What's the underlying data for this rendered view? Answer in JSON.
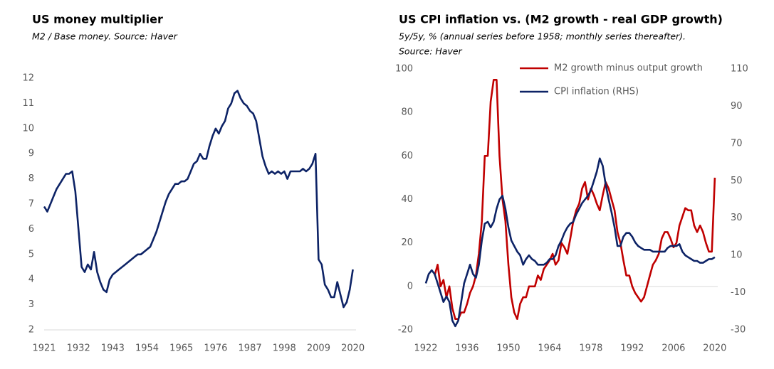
{
  "chart_data": [
    {
      "type": "line",
      "title": "US money multiplier",
      "subtitle": [
        "M2 / Base money. Source: Haver"
      ],
      "x": [
        1921,
        1922,
        1923,
        1924,
        1925,
        1926,
        1927,
        1928,
        1929,
        1930,
        1931,
        1932,
        1933,
        1934,
        1935,
        1936,
        1937,
        1938,
        1939,
        1940,
        1941,
        1942,
        1943,
        1944,
        1945,
        1946,
        1947,
        1948,
        1949,
        1950,
        1951,
        1952,
        1953,
        1954,
        1955,
        1956,
        1957,
        1958,
        1959,
        1960,
        1961,
        1962,
        1963,
        1964,
        1965,
        1966,
        1967,
        1968,
        1969,
        1970,
        1971,
        1972,
        1973,
        1974,
        1975,
        1976,
        1977,
        1978,
        1979,
        1980,
        1981,
        1982,
        1983,
        1984,
        1985,
        1986,
        1987,
        1988,
        1989,
        1990,
        1991,
        1992,
        1993,
        1994,
        1995,
        1996,
        1997,
        1998,
        1999,
        2000,
        2001,
        2002,
        2003,
        2004,
        2005,
        2006,
        2007,
        2008,
        2009,
        2010,
        2011,
        2012,
        2013,
        2014,
        2015,
        2016,
        2017,
        2018,
        2019,
        2020
      ],
      "series": [
        {
          "color": "#0d2366",
          "values": [
            6.9,
            6.7,
            7.0,
            7.3,
            7.6,
            7.8,
            8.0,
            8.2,
            8.2,
            8.3,
            7.5,
            6.0,
            4.5,
            4.3,
            4.6,
            4.4,
            5.1,
            4.3,
            3.9,
            3.6,
            3.5,
            4.0,
            4.2,
            4.3,
            4.4,
            4.5,
            4.6,
            4.7,
            4.8,
            4.9,
            5.0,
            5.0,
            5.1,
            5.2,
            5.3,
            5.6,
            5.9,
            6.3,
            6.7,
            7.1,
            7.4,
            7.6,
            7.8,
            7.8,
            7.9,
            7.9,
            8.0,
            8.3,
            8.6,
            8.7,
            9.0,
            8.8,
            8.8,
            9.3,
            9.7,
            10.0,
            9.8,
            10.1,
            10.3,
            10.8,
            11.0,
            11.4,
            11.5,
            11.2,
            11.0,
            10.9,
            10.7,
            10.6,
            10.3,
            9.6,
            8.9,
            8.5,
            8.2,
            8.3,
            8.2,
            8.3,
            8.2,
            8.3,
            8.0,
            8.3,
            8.3,
            8.3,
            8.3,
            8.4,
            8.3,
            8.4,
            8.6,
            9.0,
            4.8,
            4.6,
            3.8,
            3.6,
            3.3,
            3.3,
            3.9,
            3.4,
            2.9,
            3.1,
            3.6,
            4.4
          ]
        }
      ],
      "xlim": [
        1921,
        2021
      ],
      "xticks": [
        1921,
        1932,
        1943,
        1954,
        1965,
        1976,
        1987,
        1998,
        2009,
        2020
      ],
      "ylim": [
        2,
        12
      ],
      "yticks": [
        2,
        3,
        4,
        5,
        6,
        7,
        8,
        9,
        10,
        11,
        12
      ]
    },
    {
      "type": "line",
      "title": "US CPI inflation vs. (M2 growth - real GDP growth)",
      "subtitle": [
        "5y/5y, % (annual series before 1958; monthly series thereafter).",
        "Source: Haver"
      ],
      "x": [
        1922,
        1923,
        1924,
        1925,
        1926,
        1927,
        1928,
        1929,
        1930,
        1931,
        1932,
        1933,
        1934,
        1935,
        1936,
        1937,
        1938,
        1939,
        1940,
        1941,
        1942,
        1943,
        1944,
        1945,
        1946,
        1947,
        1948,
        1949,
        1950,
        1951,
        1952,
        1953,
        1954,
        1955,
        1956,
        1957,
        1958,
        1959,
        1960,
        1961,
        1962,
        1963,
        1964,
        1965,
        1966,
        1967,
        1968,
        1969,
        1970,
        1971,
        1972,
        1973,
        1974,
        1975,
        1976,
        1977,
        1978,
        1979,
        1980,
        1981,
        1982,
        1983,
        1984,
        1985,
        1986,
        1987,
        1988,
        1989,
        1990,
        1991,
        1992,
        1993,
        1994,
        1995,
        1996,
        1997,
        1998,
        1999,
        2000,
        2001,
        2002,
        2003,
        2004,
        2005,
        2006,
        2007,
        2008,
        2009,
        2010,
        2011,
        2012,
        2013,
        2014,
        2015,
        2016,
        2017,
        2018,
        2019,
        2020
      ],
      "series": [
        {
          "name": "M2 growth minus output growth",
          "color": "#c00000",
          "values": [
            null,
            null,
            null,
            5,
            10,
            0,
            3,
            -5,
            0,
            -10,
            -15,
            -15,
            -12,
            -12,
            -8,
            -3,
            0,
            5,
            15,
            30,
            60,
            60,
            85,
            95,
            95,
            60,
            40,
            30,
            10,
            -5,
            -12,
            -15,
            -8,
            -5,
            -5,
            0,
            0,
            0,
            5,
            3,
            8,
            10,
            12,
            15,
            10,
            12,
            20,
            18,
            15,
            22,
            30,
            35,
            38,
            45,
            48,
            40,
            45,
            42,
            38,
            35,
            42,
            48,
            45,
            40,
            35,
            25,
            20,
            12,
            5,
            5,
            0,
            -3,
            -5,
            -7,
            -5,
            0,
            5,
            10,
            12,
            15,
            22,
            25,
            25,
            22,
            18,
            20,
            28,
            32,
            36,
            35,
            35,
            28,
            25,
            28,
            25,
            20,
            16,
            16,
            50
          ]
        },
        {
          "name": "CPI inflation (RHS)",
          "color": "#0d2366",
          "axis": "y2",
          "values": [
            -5,
            0,
            2,
            0,
            -5,
            -10,
            -15,
            -12,
            -15,
            -25,
            -28,
            -25,
            -15,
            -5,
            0,
            5,
            0,
            -2,
            5,
            18,
            27,
            28,
            25,
            28,
            35,
            40,
            42,
            35,
            25,
            18,
            15,
            12,
            10,
            5,
            8,
            10,
            8,
            7,
            5,
            5,
            5,
            6,
            8,
            8,
            10,
            15,
            18,
            22,
            25,
            27,
            28,
            32,
            35,
            38,
            40,
            42,
            45,
            50,
            55,
            62,
            58,
            48,
            40,
            33,
            25,
            15,
            15,
            20,
            22,
            22,
            20,
            17,
            15,
            14,
            13,
            13,
            13,
            12,
            12,
            12,
            12,
            12,
            14,
            15,
            15,
            15,
            16,
            12,
            10,
            9,
            8,
            7,
            7,
            6,
            6,
            7,
            8,
            8,
            9
          ]
        }
      ],
      "xlim": [
        1922,
        2021
      ],
      "xticks": [
        1922,
        1936,
        1950,
        1964,
        1978,
        1992,
        2006,
        2020
      ],
      "ylim": [
        -20,
        100
      ],
      "yticks": [
        -20,
        0,
        20,
        40,
        60,
        80,
        100
      ],
      "y2lim": [
        -30,
        110
      ],
      "y2ticks": [
        -30,
        -10,
        10,
        30,
        50,
        70,
        90,
        110
      ],
      "legend": "top-right"
    }
  ]
}
